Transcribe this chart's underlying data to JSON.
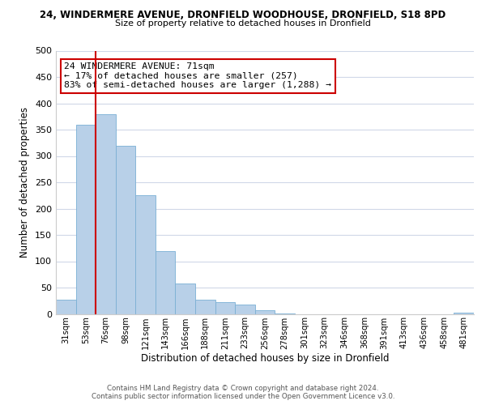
{
  "title_main": "24, WINDERMERE AVENUE, DRONFIELD WOODHOUSE, DRONFIELD, S18 8PD",
  "title_sub": "Size of property relative to detached houses in Dronfield",
  "xlabel": "Distribution of detached houses by size in Dronfield",
  "ylabel": "Number of detached properties",
  "bar_labels": [
    "31sqm",
    "53sqm",
    "76sqm",
    "98sqm",
    "121sqm",
    "143sqm",
    "166sqm",
    "188sqm",
    "211sqm",
    "233sqm",
    "256sqm",
    "278sqm",
    "301sqm",
    "323sqm",
    "346sqm",
    "368sqm",
    "391sqm",
    "413sqm",
    "436sqm",
    "458sqm",
    "481sqm"
  ],
  "bar_values": [
    27,
    360,
    380,
    320,
    225,
    120,
    58,
    27,
    23,
    18,
    7,
    1,
    0,
    0,
    0,
    0,
    0,
    0,
    0,
    0,
    2
  ],
  "bar_color": "#b8d0e8",
  "bar_edge_color": "#7aafd4",
  "vline_color": "#cc0000",
  "ylim": [
    0,
    500
  ],
  "yticks": [
    0,
    50,
    100,
    150,
    200,
    250,
    300,
    350,
    400,
    450,
    500
  ],
  "annotation_title": "24 WINDERMERE AVENUE: 71sqm",
  "annotation_line1": "← 17% of detached houses are smaller (257)",
  "annotation_line2": "83% of semi-detached houses are larger (1,288) →",
  "annotation_box_color": "#ffffff",
  "annotation_box_edge": "#cc0000",
  "footer1": "Contains HM Land Registry data © Crown copyright and database right 2024.",
  "footer2": "Contains public sector information licensed under the Open Government Licence v3.0.",
  "bg_color": "#ffffff",
  "grid_color": "#d0d8e8"
}
